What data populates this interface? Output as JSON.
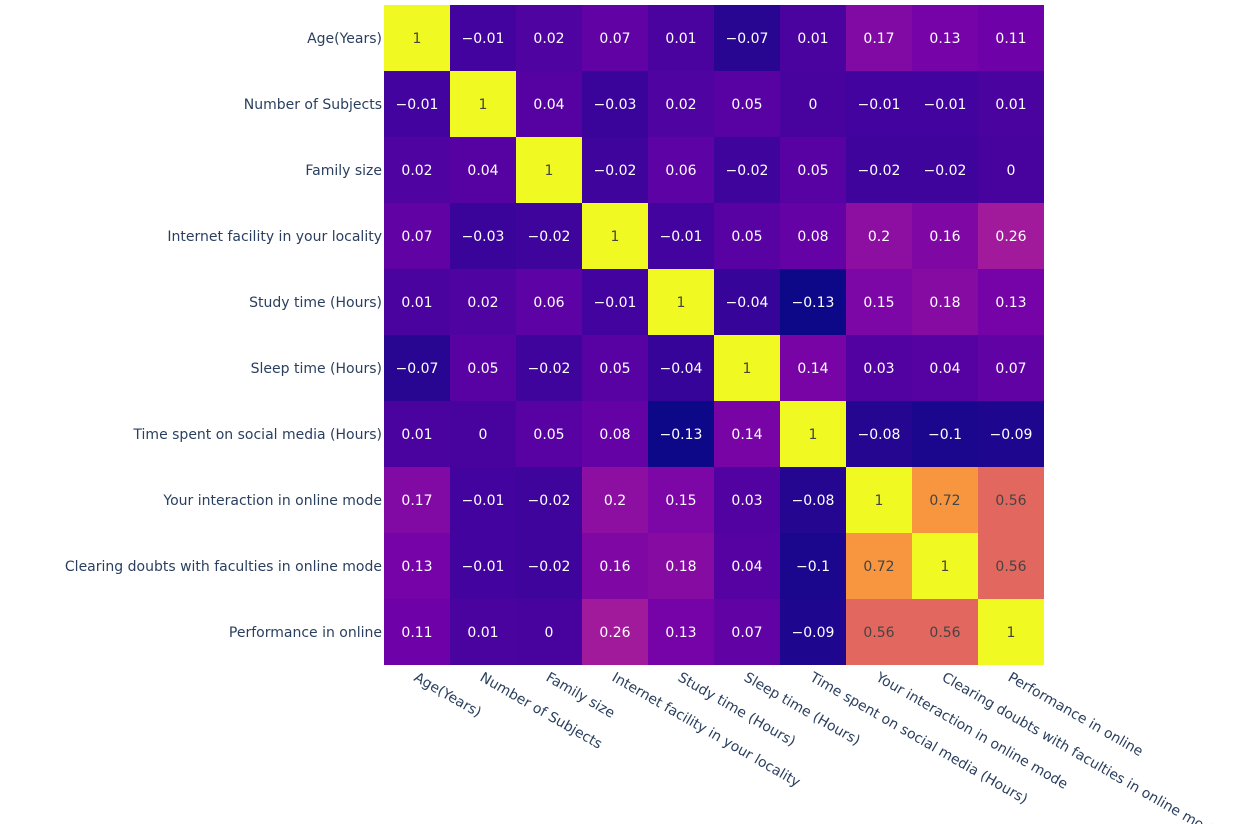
{
  "chart_data": {
    "type": "heatmap",
    "title": "",
    "colorscale": "plasma",
    "zrange": [
      -0.13,
      1
    ],
    "colors": [
      "#0d0887",
      "#46039f",
      "#7201a8",
      "#9c179e",
      "#bd3786",
      "#d8576b",
      "#ed7953",
      "#fb9f3a",
      "#fdca26",
      "#f0f921"
    ],
    "x_labels": [
      "Age(Years)",
      "Number of Subjects",
      "Family size",
      "Internet facility in your locality",
      "Study time (Hours)",
      "Sleep time (Hours)",
      "Time spent on social media (Hours)",
      "Your interaction in online mode",
      "Clearing doubts with faculties in online mode",
      "Performance in online"
    ],
    "y_labels": [
      "Age(Years)",
      "Number of Subjects",
      "Family size",
      "Internet facility in your locality",
      "Study time (Hours)",
      "Sleep time (Hours)",
      "Time spent on social media (Hours)",
      "Your interaction in online mode",
      "Clearing doubts with faculties in online mode",
      "Performance in online"
    ],
    "z": [
      [
        1,
        -0.01,
        0.02,
        0.07,
        0.01,
        -0.07,
        0.01,
        0.17,
        0.13,
        0.11
      ],
      [
        -0.01,
        1,
        0.04,
        -0.03,
        0.02,
        0.05,
        0,
        -0.01,
        -0.01,
        0.01
      ],
      [
        0.02,
        0.04,
        1,
        -0.02,
        0.06,
        -0.02,
        0.05,
        -0.02,
        -0.02,
        0
      ],
      [
        0.07,
        -0.03,
        -0.02,
        1,
        -0.01,
        0.05,
        0.08,
        0.2,
        0.16,
        0.26
      ],
      [
        0.01,
        0.02,
        0.06,
        -0.01,
        1,
        -0.04,
        -0.13,
        0.15,
        0.18,
        0.13
      ],
      [
        -0.07,
        0.05,
        -0.02,
        0.05,
        -0.04,
        1,
        0.14,
        0.03,
        0.04,
        0.07
      ],
      [
        0.01,
        0,
        0.05,
        0.08,
        -0.13,
        0.14,
        1,
        -0.08,
        -0.1,
        -0.09
      ],
      [
        0.17,
        -0.01,
        -0.02,
        0.2,
        0.15,
        0.03,
        -0.08,
        1,
        0.72,
        0.56
      ],
      [
        0.13,
        -0.01,
        -0.02,
        0.16,
        0.18,
        0.04,
        -0.1,
        0.72,
        1,
        0.56
      ],
      [
        0.11,
        0.01,
        0,
        0.26,
        0.13,
        0.07,
        -0.09,
        0.56,
        0.56,
        1
      ]
    ]
  }
}
